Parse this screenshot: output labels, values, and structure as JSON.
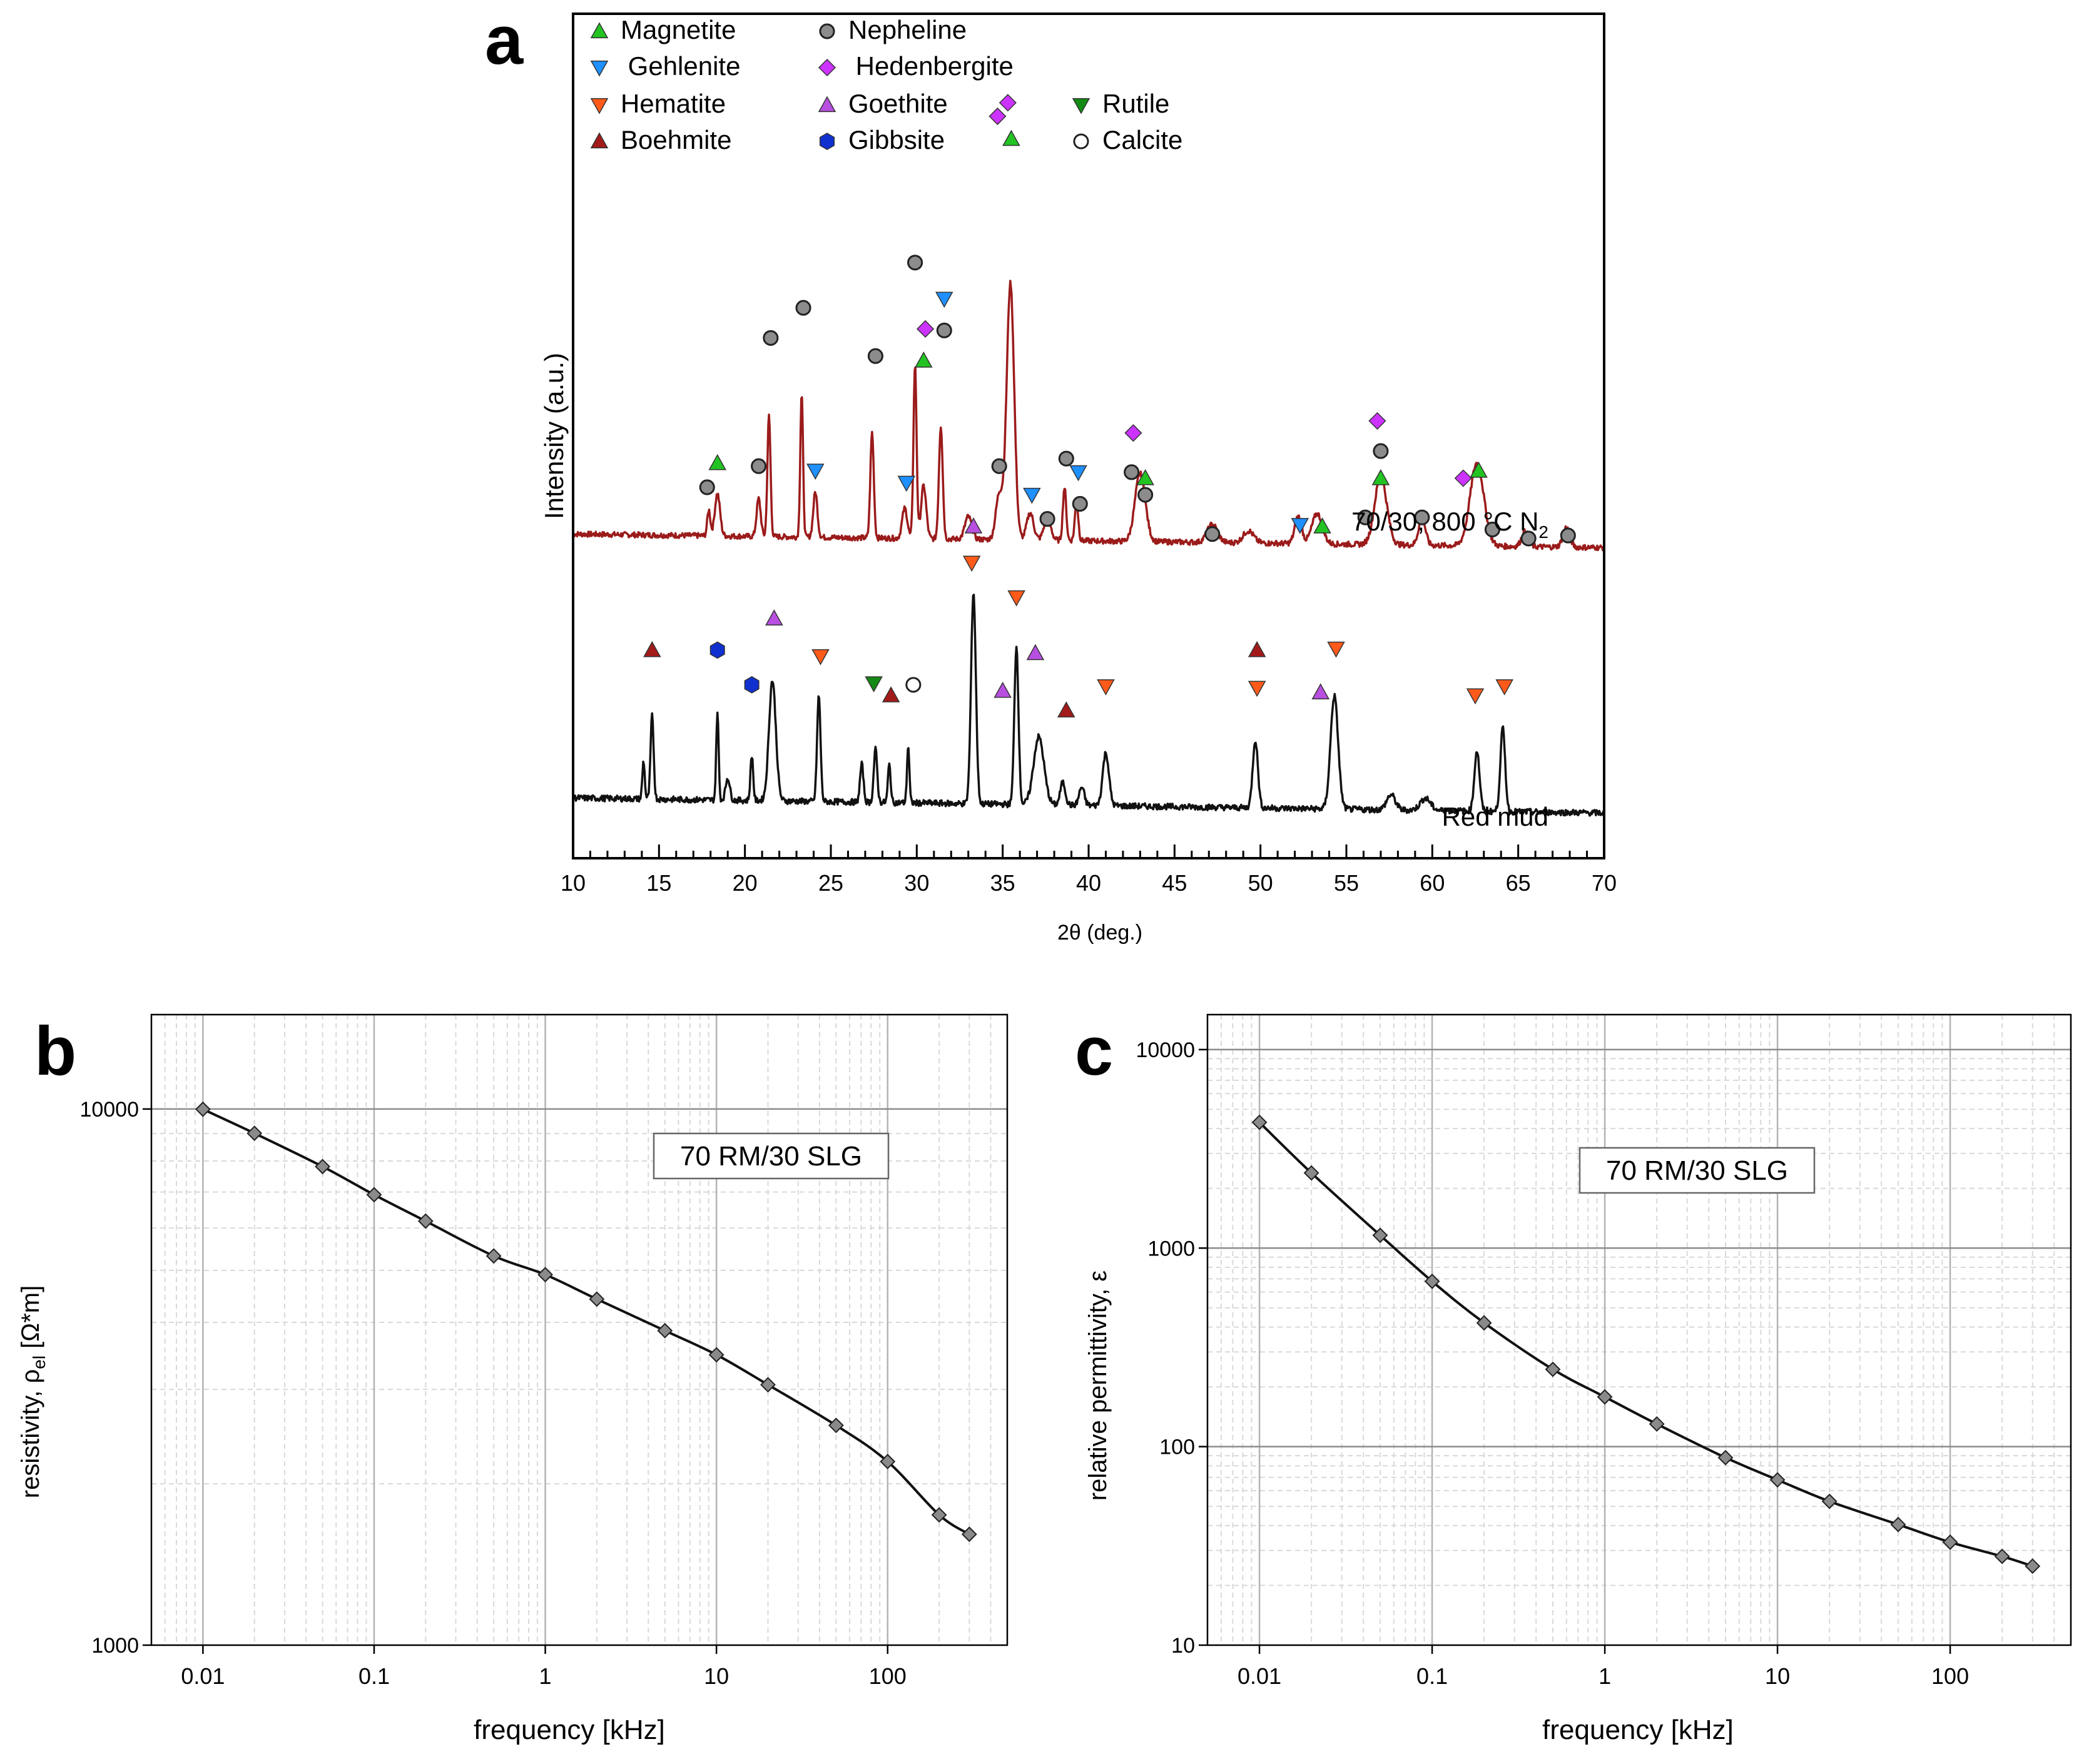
{
  "chart_data": [
    {
      "id": "a",
      "type": "line",
      "panel_label": "a",
      "xlabel": "2θ (deg.)",
      "ylabel": "Intensity (a.u.)",
      "xlim": [
        10,
        70
      ],
      "xticks": [
        10,
        15,
        20,
        25,
        30,
        35,
        40,
        45,
        50,
        55,
        60,
        65,
        70
      ],
      "xtick_labels": [
        "10",
        "15",
        "20",
        "25",
        "30",
        "35",
        "40",
        "45",
        "50",
        "55",
        "60",
        "65",
        "70"
      ],
      "series": [
        {
          "name": "70/30, 800 °C N2",
          "label_main": "70/30, 800 °C N",
          "label_sub": "2",
          "color": "#9b1b1b",
          "baseline": 0.9,
          "slope": -0.09,
          "noise": 0.018,
          "offset": 1.25,
          "peaks": [
            [
              17.9,
              0.17,
              0.09
            ],
            [
              18.4,
              0.28,
              0.15
            ],
            [
              20.8,
              0.25,
              0.12
            ],
            [
              21.4,
              0.8,
              0.09
            ],
            [
              23.3,
              0.95,
              0.08
            ],
            [
              24.1,
              0.3,
              0.12
            ],
            [
              27.4,
              0.7,
              0.1
            ],
            [
              29.3,
              0.2,
              0.15
            ],
            [
              29.9,
              1.15,
              0.09
            ],
            [
              30.4,
              0.35,
              0.15
            ],
            [
              31.4,
              0.75,
              0.11
            ],
            [
              33.0,
              0.15,
              0.2
            ],
            [
              34.8,
              0.3,
              0.2
            ],
            [
              35.45,
              1.7,
              0.22
            ],
            [
              36.6,
              0.18,
              0.2
            ],
            [
              37.6,
              0.15,
              0.2
            ],
            [
              38.6,
              0.35,
              0.1
            ],
            [
              39.3,
              0.25,
              0.1
            ],
            [
              43.0,
              0.45,
              0.3
            ],
            [
              47.2,
              0.12,
              0.3
            ],
            [
              49.3,
              0.08,
              0.3
            ],
            [
              52.2,
              0.18,
              0.2
            ],
            [
              53.3,
              0.2,
              0.3
            ],
            [
              57.0,
              0.45,
              0.35
            ],
            [
              59.4,
              0.18,
              0.2
            ],
            [
              62.6,
              0.55,
              0.4
            ],
            [
              65.4,
              0.1,
              0.2
            ],
            [
              67.8,
              0.13,
              0.2
            ]
          ]
        },
        {
          "name": "Red mud",
          "label_main": "Red mud",
          "label_sub": "",
          "color": "#111111",
          "baseline": 0.4,
          "slope": -0.1,
          "noise": 0.02,
          "offset": 0.0,
          "peaks": [
            [
              14.1,
              0.25,
              0.07
            ],
            [
              14.6,
              0.55,
              0.09
            ],
            [
              18.4,
              0.58,
              0.07
            ],
            [
              19.0,
              0.15,
              0.12
            ],
            [
              20.4,
              0.3,
              0.08
            ],
            [
              21.6,
              0.8,
              0.2
            ],
            [
              24.3,
              0.7,
              0.1
            ],
            [
              26.8,
              0.25,
              0.1
            ],
            [
              27.6,
              0.35,
              0.1
            ],
            [
              28.4,
              0.25,
              0.08
            ],
            [
              29.5,
              0.38,
              0.07
            ],
            [
              33.3,
              1.4,
              0.14
            ],
            [
              35.8,
              1.05,
              0.12
            ],
            [
              37.1,
              0.45,
              0.3
            ],
            [
              38.5,
              0.15,
              0.15
            ],
            [
              39.6,
              0.12,
              0.15
            ],
            [
              41.0,
              0.35,
              0.18
            ],
            [
              49.7,
              0.45,
              0.15
            ],
            [
              54.3,
              0.75,
              0.22
            ],
            [
              57.6,
              0.1,
              0.25
            ],
            [
              59.6,
              0.08,
              0.3
            ],
            [
              62.6,
              0.4,
              0.15
            ],
            [
              64.1,
              0.55,
              0.14
            ]
          ]
        }
      ],
      "legend": [
        {
          "label": "Magnetite",
          "marker": "triangle-up",
          "color": "#22c322"
        },
        {
          "label": "Nepheline",
          "marker": "circle",
          "color": "#8c8c8c"
        },
        {
          "label": " Gehlenite",
          "marker": "triangle-down",
          "color": "#1e90ff"
        },
        {
          "label": " Hedenbergite",
          "marker": "diamond",
          "color": "#cc33ff"
        },
        {
          "label": "Hematite",
          "marker": "triangle-down",
          "color": "#ff5a1a"
        },
        {
          "label": "Goethite",
          "marker": "triangle-up",
          "color": "#b84fe0"
        },
        {
          "label": "Rutile",
          "marker": "triangle-down",
          "color": "#138a13"
        },
        {
          "label": "Boehmite",
          "marker": "triangle-up",
          "color": "#a31a1a"
        },
        {
          "label": "Gibbsite",
          "marker": "hexagon",
          "color": "#1030d0"
        },
        {
          "label": "Calcite",
          "marker": "circle-open",
          "color": "#333333"
        }
      ],
      "phase_marks": [
        {
          "phase": "Magnetite",
          "x": 18.4,
          "y": 2.62
        },
        {
          "phase": "Magnetite",
          "x": 30.4,
          "y": 3.3
        },
        {
          "phase": "Magnetite",
          "x": 35.5,
          "y": 4.77
        },
        {
          "phase": "Magnetite",
          "x": 43.3,
          "y": 2.52
        },
        {
          "phase": "Magnetite",
          "x": 53.6,
          "y": 2.2
        },
        {
          "phase": "Magnetite",
          "x": 57.0,
          "y": 2.52
        },
        {
          "phase": "Magnetite",
          "x": 62.7,
          "y": 2.57
        },
        {
          "phase": "Nepheline",
          "x": 17.8,
          "y": 2.46
        },
        {
          "phase": "Nepheline",
          "x": 20.8,
          "y": 2.6
        },
        {
          "phase": "Nepheline",
          "x": 21.5,
          "y": 3.45
        },
        {
          "phase": "Nepheline",
          "x": 23.4,
          "y": 3.65
        },
        {
          "phase": "Nepheline",
          "x": 27.6,
          "y": 3.33
        },
        {
          "phase": "Nepheline",
          "x": 29.9,
          "y": 3.95
        },
        {
          "phase": "Nepheline",
          "x": 31.6,
          "y": 3.5
        },
        {
          "phase": "Nepheline",
          "x": 34.8,
          "y": 2.6
        },
        {
          "phase": "Nepheline",
          "x": 37.6,
          "y": 2.25
        },
        {
          "phase": "Nepheline",
          "x": 38.7,
          "y": 2.65
        },
        {
          "phase": "Nepheline",
          "x": 39.5,
          "y": 2.35
        },
        {
          "phase": "Nepheline",
          "x": 42.5,
          "y": 2.56
        },
        {
          "phase": "Nepheline",
          "x": 43.3,
          "y": 2.41
        },
        {
          "phase": "Nepheline",
          "x": 47.2,
          "y": 2.15
        },
        {
          "phase": "Nepheline",
          "x": 56.1,
          "y": 2.26
        },
        {
          "phase": "Nepheline",
          "x": 57.0,
          "y": 2.7
        },
        {
          "phase": "Nepheline",
          "x": 59.4,
          "y": 2.26
        },
        {
          "phase": "Nepheline",
          "x": 63.5,
          "y": 2.18
        },
        {
          "phase": "Nepheline",
          "x": 65.6,
          "y": 2.12
        },
        {
          "phase": "Nepheline",
          "x": 67.9,
          "y": 2.14
        },
        {
          "phase": "Gehlenite",
          "x": 24.1,
          "y": 2.57
        },
        {
          "phase": "Gehlenite",
          "x": 29.4,
          "y": 2.49
        },
        {
          "phase": "Gehlenite",
          "x": 31.6,
          "y": 3.71
        },
        {
          "phase": "Gehlenite",
          "x": 36.7,
          "y": 2.41
        },
        {
          "phase": "Gehlenite",
          "x": 39.4,
          "y": 2.56
        },
        {
          "phase": "Gehlenite",
          "x": 52.3,
          "y": 2.21
        },
        {
          "phase": "Hedenbergite",
          "x": 30.5,
          "y": 3.51
        },
        {
          "phase": "Hedenbergite",
          "x": 34.7,
          "y": 4.92
        },
        {
          "phase": "Hedenbergite",
          "x": 35.3,
          "y": 5.01
        },
        {
          "phase": "Hedenbergite",
          "x": 42.6,
          "y": 2.82
        },
        {
          "phase": "Hedenbergite",
          "x": 56.8,
          "y": 2.9
        },
        {
          "phase": "Hedenbergite",
          "x": 61.8,
          "y": 2.52
        },
        {
          "phase": "Hematite",
          "x": 24.4,
          "y": 1.34
        },
        {
          "phase": "Hematite",
          "x": 33.2,
          "y": 1.96
        },
        {
          "phase": "Hematite",
          "x": 35.8,
          "y": 1.73
        },
        {
          "phase": "Hematite",
          "x": 41.0,
          "y": 1.14
        },
        {
          "phase": "Hematite",
          "x": 49.8,
          "y": 1.13
        },
        {
          "phase": "Hematite",
          "x": 54.4,
          "y": 1.39
        },
        {
          "phase": "Hematite",
          "x": 62.5,
          "y": 1.08
        },
        {
          "phase": "Hematite",
          "x": 64.2,
          "y": 1.14
        },
        {
          "phase": "Goethite",
          "x": 21.7,
          "y": 1.59
        },
        {
          "phase": "Goethite",
          "x": 33.3,
          "y": 2.2
        },
        {
          "phase": "Goethite",
          "x": 36.9,
          "y": 1.36
        },
        {
          "phase": "Goethite",
          "x": 35.0,
          "y": 1.11
        },
        {
          "phase": "Goethite",
          "x": 53.5,
          "y": 1.1
        },
        {
          "phase": "Rutile",
          "x": 27.5,
          "y": 1.16
        },
        {
          "phase": "Boehmite",
          "x": 14.6,
          "y": 1.38
        },
        {
          "phase": "Boehmite",
          "x": 28.5,
          "y": 1.08
        },
        {
          "phase": "Boehmite",
          "x": 38.7,
          "y": 0.98
        },
        {
          "phase": "Boehmite",
          "x": 49.8,
          "y": 1.38
        },
        {
          "phase": "Gibbsite",
          "x": 18.4,
          "y": 1.38
        },
        {
          "phase": "Gibbsite",
          "x": 20.4,
          "y": 1.15
        },
        {
          "phase": "Calcite",
          "x": 29.8,
          "y": 1.15
        }
      ]
    },
    {
      "id": "b",
      "type": "line",
      "panel_label": "b",
      "title": "70 RM/30 SLG",
      "xlabel": "frequency [kHz]",
      "ylabel_main": "resistivity, ρ",
      "ylabel_sub": "el",
      "ylabel_tail": " [Ω*m]",
      "xscale": "log",
      "yscale": "log",
      "xlim": [
        0.005,
        500
      ],
      "ylim": [
        1000,
        15000
      ],
      "xticks": [
        0.01,
        0.1,
        1,
        10,
        100
      ],
      "xtick_labels": [
        "0.01",
        "0.1",
        "1",
        "10",
        "100"
      ],
      "yticks": [
        1000,
        10000
      ],
      "ytick_labels": [
        "1000",
        "10000"
      ],
      "x": [
        0.01,
        0.02,
        0.05,
        0.1,
        0.2,
        0.5,
        1,
        2,
        5,
        10,
        20,
        50,
        100,
        200,
        300
      ],
      "y": [
        9990,
        9010,
        7810,
        6920,
        6180,
        5320,
        4910,
        4420,
        3860,
        3480,
        3060,
        2570,
        2200,
        1750,
        1610
      ]
    },
    {
      "id": "c",
      "type": "line",
      "panel_label": "c",
      "title": "70 RM/30 SLG",
      "xlabel": "frequency [kHz]",
      "ylabel_main": "relative permittivity, ε",
      "ylabel_sub": "",
      "ylabel_tail": "",
      "xscale": "log",
      "yscale": "log",
      "xlim": [
        0.005,
        500
      ],
      "ylim": [
        10,
        15000
      ],
      "xticks": [
        0.01,
        0.1,
        1,
        10,
        100
      ],
      "xtick_labels": [
        "0.01",
        "0.1",
        "1",
        "10",
        "100"
      ],
      "yticks": [
        10,
        100,
        1000,
        10000
      ],
      "ytick_labels": [
        "10",
        "100",
        "1000",
        "10000"
      ],
      "x": [
        0.01,
        0.02,
        0.05,
        0.1,
        0.2,
        0.5,
        1,
        2,
        5,
        10,
        20,
        50,
        100,
        200,
        300
      ],
      "y": [
        4300,
        2390,
        1160,
        680,
        420,
        245,
        178,
        130,
        88,
        68,
        53,
        40.5,
        33,
        28,
        25
      ]
    }
  ]
}
